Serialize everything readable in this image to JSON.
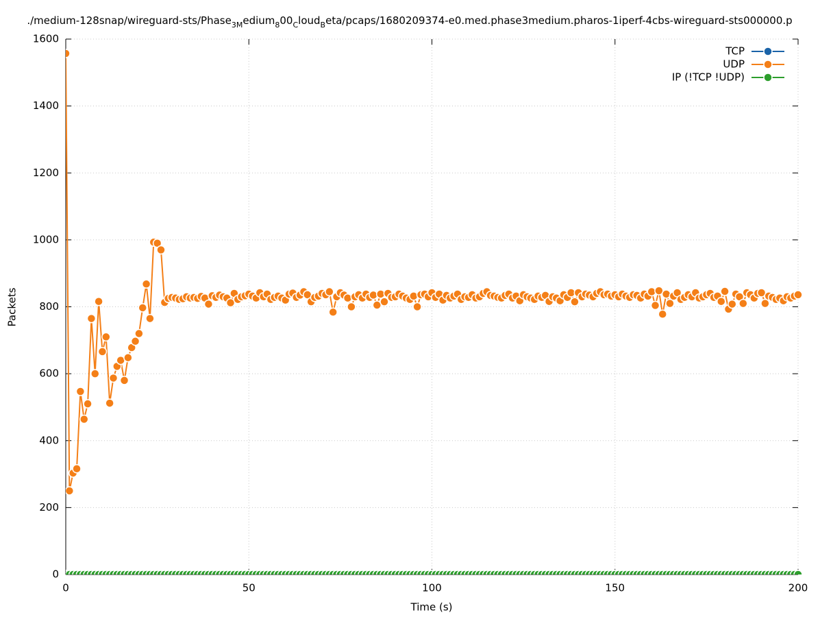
{
  "chart_data": {
    "type": "line",
    "title_parts": [
      "./medium-128snap/wireguard-sts/Phase",
      "3M",
      "edium",
      "8",
      "00",
      "C",
      "loud",
      "B",
      "eta/pcaps/1680209374-e0.med.phase3medium.pharos-1iperf-4cbs-wireguard-sts000000.p"
    ],
    "x_label": "Time (s)",
    "y_label": "Packets",
    "xlim": [
      0,
      200
    ],
    "ylim": [
      0,
      1600
    ],
    "xticks": [
      0,
      50,
      100,
      150,
      200
    ],
    "yticks": [
      0,
      200,
      400,
      600,
      800,
      1000,
      1200,
      1400,
      1600
    ],
    "grid": true,
    "legend": "top-right",
    "x": [
      0,
      1,
      2,
      3,
      4,
      5,
      6,
      7,
      8,
      9,
      10,
      11,
      12,
      13,
      14,
      15,
      16,
      17,
      18,
      19,
      20,
      21,
      22,
      23,
      24,
      25,
      26,
      27,
      28,
      29,
      30,
      31,
      32,
      33,
      34,
      35,
      36,
      37,
      38,
      39,
      40,
      41,
      42,
      43,
      44,
      45,
      46,
      47,
      48,
      49,
      50,
      51,
      52,
      53,
      54,
      55,
      56,
      57,
      58,
      59,
      60,
      61,
      62,
      63,
      64,
      65,
      66,
      67,
      68,
      69,
      70,
      71,
      72,
      73,
      74,
      75,
      76,
      77,
      78,
      79,
      80,
      81,
      82,
      83,
      84,
      85,
      86,
      87,
      88,
      89,
      90,
      91,
      92,
      93,
      94,
      95,
      96,
      97,
      98,
      99,
      100,
      101,
      102,
      103,
      104,
      105,
      106,
      107,
      108,
      109,
      110,
      111,
      112,
      113,
      114,
      115,
      116,
      117,
      118,
      119,
      120,
      121,
      122,
      123,
      124,
      125,
      126,
      127,
      128,
      129,
      130,
      131,
      132,
      133,
      134,
      135,
      136,
      137,
      138,
      139,
      140,
      141,
      142,
      143,
      144,
      145,
      146,
      147,
      148,
      149,
      150,
      151,
      152,
      153,
      154,
      155,
      156,
      157,
      158,
      159,
      160,
      161,
      162,
      163,
      164,
      165,
      166,
      167,
      168,
      169,
      170,
      171,
      172,
      173,
      174,
      175,
      176,
      177,
      178,
      179,
      180,
      181,
      182,
      183,
      184,
      185,
      186,
      187,
      188,
      189,
      190,
      191,
      192,
      193,
      194,
      195,
      196,
      197,
      198,
      199,
      200
    ],
    "series": [
      {
        "name": "TCP",
        "color": "#1a63a8",
        "values": [
          0,
          0,
          0,
          0,
          0,
          0,
          0,
          0,
          0,
          0,
          0,
          0,
          0,
          0,
          0,
          0,
          0,
          0,
          0,
          0,
          0,
          0,
          0,
          0,
          0,
          0,
          0,
          0,
          0,
          0,
          0,
          0,
          0,
          0,
          0,
          0,
          0,
          0,
          0,
          0,
          0,
          0,
          0,
          0,
          0,
          0,
          0,
          0,
          0,
          0,
          0,
          0,
          0,
          0,
          0,
          0,
          0,
          0,
          0,
          0,
          0,
          0,
          0,
          0,
          0,
          0,
          0,
          0,
          0,
          0,
          0,
          0,
          0,
          0,
          0,
          0,
          0,
          0,
          0,
          0,
          0,
          0,
          0,
          0,
          0,
          0,
          0,
          0,
          0,
          0,
          0,
          0,
          0,
          0,
          0,
          0,
          0,
          0,
          0,
          0,
          0,
          0,
          0,
          0,
          0,
          0,
          0,
          0,
          0,
          0,
          0,
          0,
          0,
          0,
          0,
          0,
          0,
          0,
          0,
          0,
          0,
          0,
          0,
          0,
          0,
          0,
          0,
          0,
          0,
          0,
          0,
          0,
          0,
          0,
          0,
          0,
          0,
          0,
          0,
          0,
          0,
          0,
          0,
          0,
          0,
          0,
          0,
          0,
          0,
          0,
          0,
          0,
          0,
          0,
          0,
          0,
          0,
          0,
          0,
          0,
          0,
          0,
          0,
          0,
          0,
          0,
          0,
          0,
          0,
          0,
          0,
          0,
          0,
          0,
          0,
          0,
          0,
          0,
          0,
          0,
          0,
          0,
          0,
          0,
          0,
          0,
          0,
          0,
          0,
          0,
          0,
          0,
          0,
          0,
          0,
          0,
          0,
          0,
          0,
          0,
          0
        ]
      },
      {
        "name": "UDP",
        "color": "#f47f17",
        "values": [
          1557,
          250,
          303,
          316,
          547,
          464,
          510,
          765,
          600,
          816,
          666,
          710,
          512,
          587,
          622,
          640,
          580,
          648,
          678,
          697,
          720,
          797,
          868,
          765,
          993,
          990,
          970,
          813,
          825,
          828,
          826,
          822,
          824,
          830,
          826,
          828,
          825,
          831,
          826,
          808,
          833,
          828,
          835,
          830,
          826,
          812,
          840,
          822,
          830,
          833,
          838,
          832,
          826,
          842,
          830,
          838,
          822,
          828,
          832,
          826,
          820,
          838,
          841,
          828,
          835,
          845,
          836,
          815,
          828,
          832,
          840,
          836,
          845,
          784,
          830,
          842,
          835,
          826,
          800,
          830,
          836,
          826,
          838,
          828,
          835,
          805,
          838,
          815,
          840,
          828,
          830,
          838,
          832,
          826,
          822,
          832,
          800,
          836,
          838,
          830,
          842,
          828,
          838,
          820,
          834,
          826,
          832,
          838,
          822,
          830,
          828,
          836,
          826,
          830,
          840,
          845,
          834,
          832,
          828,
          826,
          834,
          838,
          826,
          832,
          818,
          836,
          830,
          826,
          822,
          832,
          828,
          834,
          816,
          830,
          826,
          818,
          836,
          828,
          842,
          815,
          842,
          830,
          838,
          835,
          830,
          840,
          845,
          836,
          838,
          832,
          836,
          830,
          838,
          832,
          828,
          836,
          834,
          826,
          838,
          832,
          845,
          804,
          848,
          778,
          838,
          810,
          832,
          842,
          822,
          828,
          836,
          830,
          842,
          826,
          830,
          836,
          840,
          828,
          832,
          816,
          846,
          793,
          808,
          838,
          830,
          810,
          842,
          836,
          826,
          840,
          842,
          810,
          832,
          828,
          822,
          826,
          818,
          830,
          826,
          832,
          836
        ]
      },
      {
        "name": "IP (!TCP  !UDP)",
        "color": "#2c9e2c",
        "values": [
          0,
          0,
          0,
          0,
          0,
          0,
          0,
          0,
          0,
          0,
          0,
          0,
          0,
          0,
          0,
          0,
          0,
          0,
          0,
          0,
          0,
          0,
          0,
          0,
          0,
          0,
          0,
          0,
          0,
          0,
          0,
          0,
          0,
          0,
          0,
          0,
          0,
          0,
          0,
          0,
          0,
          0,
          0,
          0,
          0,
          0,
          0,
          0,
          0,
          0,
          0,
          0,
          0,
          0,
          0,
          0,
          0,
          0,
          0,
          0,
          0,
          0,
          0,
          0,
          0,
          0,
          0,
          0,
          0,
          0,
          0,
          0,
          0,
          0,
          0,
          0,
          0,
          0,
          0,
          0,
          0,
          0,
          0,
          0,
          0,
          0,
          0,
          0,
          0,
          0,
          0,
          0,
          0,
          0,
          0,
          0,
          0,
          0,
          0,
          0,
          0,
          0,
          0,
          0,
          0,
          0,
          0,
          0,
          0,
          0,
          0,
          0,
          0,
          0,
          0,
          0,
          0,
          0,
          0,
          0,
          0,
          0,
          0,
          0,
          0,
          0,
          0,
          0,
          0,
          0,
          0,
          0,
          0,
          0,
          0,
          0,
          0,
          0,
          0,
          0,
          0,
          0,
          0,
          0,
          0,
          0,
          0,
          0,
          0,
          0,
          0,
          0,
          0,
          0,
          0,
          0,
          0,
          0,
          0,
          0,
          0,
          0,
          0,
          0,
          0,
          0,
          0,
          0,
          0,
          0,
          0,
          0,
          0,
          0,
          0,
          0,
          0,
          0,
          0,
          0,
          0,
          0,
          0,
          0,
          0,
          0,
          0,
          0,
          0,
          0,
          0,
          0,
          0,
          0,
          0,
          0,
          0,
          0,
          0,
          0,
          0
        ]
      }
    ]
  }
}
